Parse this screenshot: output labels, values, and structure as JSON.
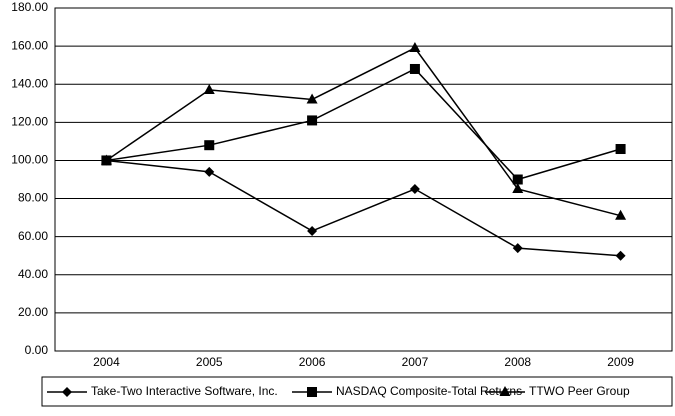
{
  "chart_data": {
    "type": "line",
    "categories": [
      "2004",
      "2005",
      "2006",
      "2007",
      "2008",
      "2009"
    ],
    "series": [
      {
        "name": "Take-Two Interactive Software, Inc.",
        "color": "#000000",
        "marker": "diamond",
        "values": [
          100,
          94,
          63,
          85,
          54,
          50
        ]
      },
      {
        "name": "NASDAQ Composite-Total Returns",
        "color": "#000000",
        "marker": "square",
        "values": [
          100,
          108,
          121,
          148,
          90,
          106
        ]
      },
      {
        "name": "TTWO Peer Group",
        "color": "#000000",
        "marker": "triangle",
        "values": [
          100,
          137,
          132,
          159,
          85,
          71
        ]
      }
    ],
    "ylim": [
      0,
      180
    ],
    "yticks": [
      {
        "value": 0,
        "label": "0.00"
      },
      {
        "value": 20,
        "label": "20.00"
      },
      {
        "value": 40,
        "label": "40.00"
      },
      {
        "value": 60,
        "label": "60.00"
      },
      {
        "value": 80,
        "label": "80.00"
      },
      {
        "value": 100,
        "label": "100.00"
      },
      {
        "value": 120,
        "label": "120.00"
      },
      {
        "value": 140,
        "label": "140.00"
      },
      {
        "value": 160,
        "label": "160.00"
      },
      {
        "value": 180,
        "label": "180.00"
      }
    ],
    "grid": true,
    "legend": "bottom"
  }
}
